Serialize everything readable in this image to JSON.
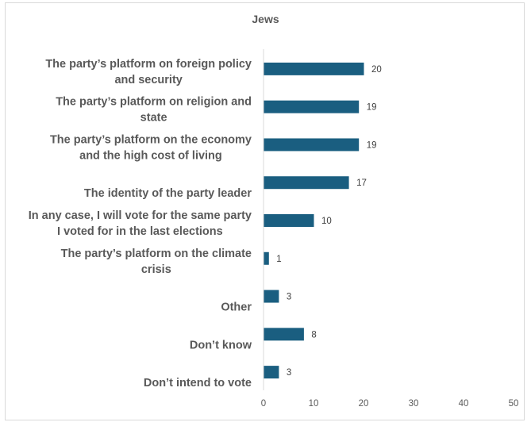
{
  "chart_data": {
    "type": "bar",
    "orientation": "horizontal",
    "title": "Jews",
    "xlabel": "",
    "ylabel": "",
    "xlim": [
      0,
      50
    ],
    "xticks": [
      0,
      10,
      20,
      30,
      40,
      50
    ],
    "grid": false,
    "legend": "none",
    "bar_color": "#1a5e80",
    "categories": [
      [
        "The party’s platform on foreign policy",
        "and security"
      ],
      [
        "The party’s platform on religion and",
        "state"
      ],
      [
        "The party’s platform on the economy",
        "and the high cost of living"
      ],
      [
        "",
        "The identity of the party leader"
      ],
      [
        "In any case, I will vote for the same party",
        "I voted for in the last elections"
      ],
      [
        "The party’s platform on the climate",
        "crisis"
      ],
      [
        "",
        "Other"
      ],
      [
        "",
        "Don’t know"
      ],
      [
        "",
        "Don’t intend to vote"
      ]
    ],
    "values": [
      20,
      19,
      19,
      17,
      10,
      1,
      3,
      8,
      3
    ]
  }
}
